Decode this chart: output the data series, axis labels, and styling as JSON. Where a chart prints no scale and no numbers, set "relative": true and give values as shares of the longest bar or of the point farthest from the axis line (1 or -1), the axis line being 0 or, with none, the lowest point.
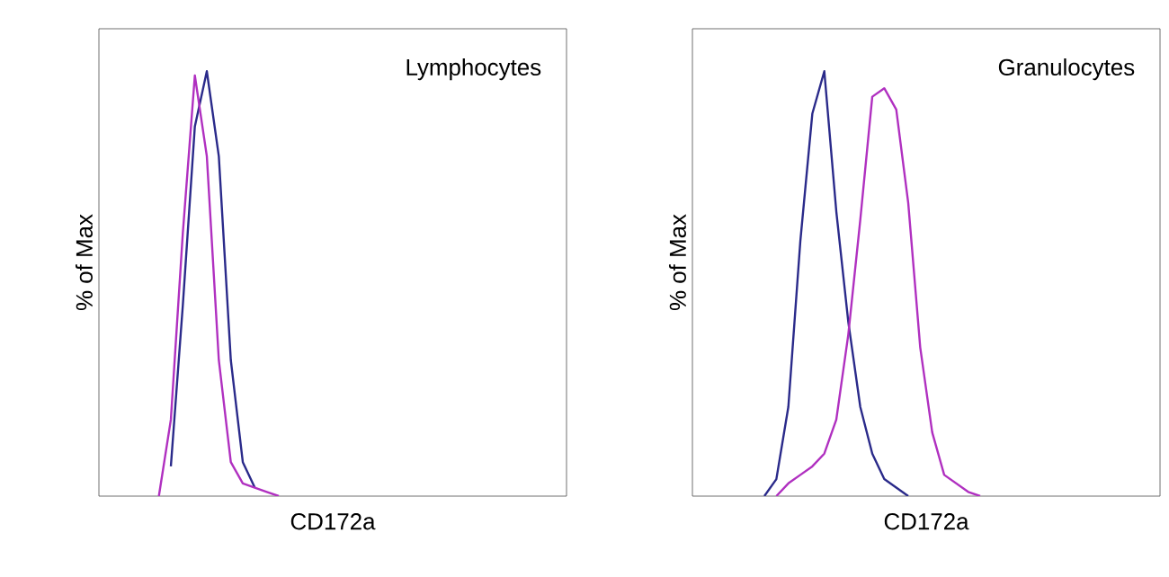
{
  "chart_data": [
    {
      "type": "line",
      "relative": true,
      "xlabel": "CD172a",
      "ylabel": "% of Max",
      "annotations": [
        "Lymphocytes"
      ],
      "categories": [
        null,
        null,
        null,
        null,
        null,
        null,
        null,
        null,
        null,
        null,
        null,
        null,
        null,
        null,
        null,
        null,
        null,
        null,
        null,
        null,
        null,
        null,
        null,
        null,
        null,
        null,
        null,
        null,
        null,
        null,
        null,
        null,
        null,
        null,
        null,
        null,
        null,
        null,
        null,
        null
      ],
      "series": [
        {
          "color": "#2a2a8a",
          "values": [
            null,
            null,
            null,
            null,
            null,
            null,
            0.07,
            0.45,
            0.87,
            1,
            0.8,
            0.32,
            0.08,
            0.02,
            null,
            null,
            null,
            null,
            null,
            null,
            null,
            null,
            null,
            null,
            null,
            null,
            null,
            null,
            null,
            null,
            null,
            null,
            null,
            null,
            null,
            null,
            null,
            null,
            null,
            null
          ]
        },
        {
          "color": "#b030c0",
          "values": [
            null,
            null,
            null,
            null,
            null,
            0,
            0.18,
            0.62,
            0.99,
            0.8,
            0.32,
            0.08,
            0.03,
            0.02,
            0.01,
            0,
            null,
            null,
            null,
            null,
            null,
            null,
            null,
            null,
            null,
            null,
            null,
            null,
            null,
            null,
            null,
            null,
            null,
            null,
            null,
            null,
            null,
            null,
            null,
            null
          ]
        }
      ]
    },
    {
      "type": "line",
      "relative": true,
      "xlabel": "CD172a",
      "ylabel": "% of Max",
      "annotations": [
        "Granulocytes"
      ],
      "categories": [
        null,
        null,
        null,
        null,
        null,
        null,
        null,
        null,
        null,
        null,
        null,
        null,
        null,
        null,
        null,
        null,
        null,
        null,
        null,
        null,
        null,
        null,
        null,
        null,
        null,
        null,
        null,
        null,
        null,
        null,
        null,
        null,
        null,
        null,
        null,
        null,
        null,
        null,
        null,
        null
      ],
      "series": [
        {
          "color": "#2a2a8a",
          "values": [
            null,
            null,
            null,
            null,
            null,
            null,
            0,
            0.04,
            0.21,
            0.6,
            0.9,
            1,
            0.67,
            0.41,
            0.21,
            0.1,
            0.04,
            0.02,
            0,
            null,
            null,
            null,
            null,
            null,
            null,
            null,
            null,
            null,
            null,
            null,
            null,
            null,
            null,
            null,
            null,
            null,
            null,
            null,
            null,
            null
          ]
        },
        {
          "color": "#b030c0",
          "values": [
            null,
            null,
            null,
            null,
            null,
            null,
            null,
            0,
            0.03,
            0.05,
            0.07,
            0.1,
            0.18,
            0.38,
            0.65,
            0.94,
            0.96,
            0.91,
            0.69,
            0.35,
            0.15,
            0.05,
            0.03,
            0.01,
            0,
            null,
            null,
            null,
            null,
            null,
            null,
            null,
            null,
            null,
            null,
            null,
            null,
            null,
            null,
            null
          ]
        }
      ]
    }
  ]
}
